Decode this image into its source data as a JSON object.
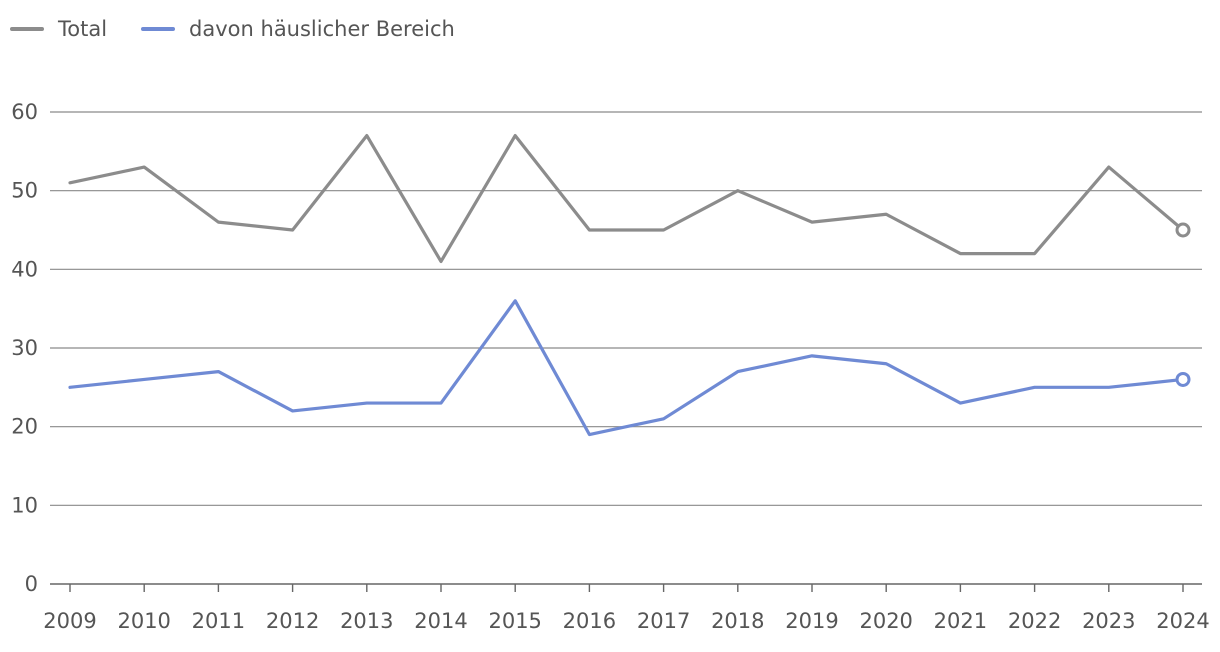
{
  "chart_data": {
    "type": "line",
    "categories": [
      "2009",
      "2010",
      "2011",
      "2012",
      "2013",
      "2014",
      "2015",
      "2016",
      "2017",
      "2018",
      "2019",
      "2020",
      "2021",
      "2022",
      "2023",
      "2024"
    ],
    "series": [
      {
        "name": "Total",
        "color": "#8c8c8c",
        "values": [
          51,
          53,
          46,
          45,
          57,
          41,
          57,
          45,
          45,
          50,
          46,
          47,
          42,
          42,
          53,
          45
        ]
      },
      {
        "name": "davon häuslicher Bereich",
        "color": "#6f8ad4",
        "values": [
          25,
          26,
          27,
          22,
          23,
          23,
          36,
          19,
          21,
          27,
          29,
          28,
          23,
          25,
          25,
          26
        ]
      }
    ],
    "yticks": [
      0,
      10,
      20,
      30,
      40,
      50,
      60
    ],
    "ylim": [
      0,
      60
    ],
    "grid": true,
    "legend": "top-left",
    "last_point_marker": true
  }
}
